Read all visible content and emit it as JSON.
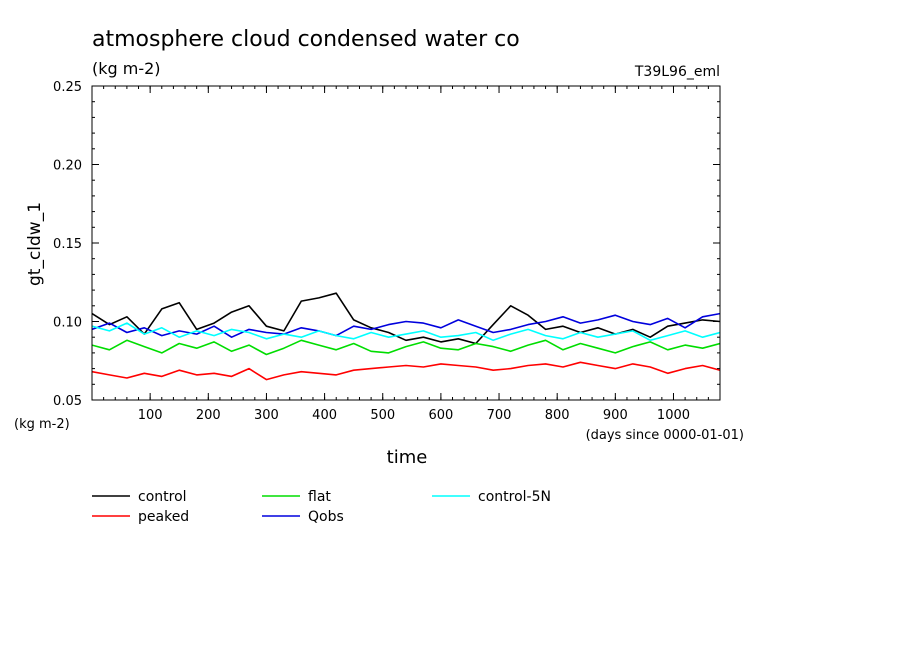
{
  "chart_data": {
    "type": "line",
    "title": "atmosphere cloud condensed water co",
    "subtitle": "(kg m-2)",
    "run_label": "T39L96_eml",
    "ylabel": "gt_cldw_1",
    "yunits": "(kg m-2)",
    "xlabel": "time",
    "xunits": "(days since 0000-01-01)",
    "xlim": [
      0,
      1080
    ],
    "ylim": [
      0.05,
      0.25
    ],
    "xticks": [
      100,
      200,
      300,
      400,
      500,
      600,
      700,
      800,
      900,
      1000
    ],
    "xtick_labels": [
      "100",
      "200",
      "300",
      "400",
      "500",
      "600",
      "700",
      "800",
      "900",
      "1000"
    ],
    "yticks": [
      0.05,
      0.1,
      0.15,
      0.2,
      0.25
    ],
    "ytick_labels": [
      "0.05",
      "0.10",
      "0.15",
      "0.20",
      "0.25"
    ],
    "grid": false,
    "legend_position": "bottom",
    "series": [
      {
        "name": "control",
        "color": "#000000",
        "x": [
          0,
          30,
          60,
          90,
          120,
          150,
          180,
          210,
          240,
          270,
          300,
          330,
          360,
          390,
          420,
          450,
          480,
          510,
          540,
          570,
          600,
          630,
          660,
          690,
          720,
          750,
          780,
          810,
          840,
          870,
          900,
          930,
          960,
          990,
          1020,
          1050,
          1080
        ],
        "y": [
          0.105,
          0.098,
          0.103,
          0.092,
          0.108,
          0.112,
          0.095,
          0.099,
          0.106,
          0.11,
          0.097,
          0.094,
          0.113,
          0.115,
          0.118,
          0.101,
          0.096,
          0.093,
          0.088,
          0.09,
          0.087,
          0.089,
          0.086,
          0.098,
          0.11,
          0.104,
          0.095,
          0.097,
          0.093,
          0.096,
          0.092,
          0.095,
          0.09,
          0.097,
          0.099,
          0.101,
          0.1
        ]
      },
      {
        "name": "peaked",
        "color": "#ff0000",
        "x": [
          0,
          30,
          60,
          90,
          120,
          150,
          180,
          210,
          240,
          270,
          300,
          330,
          360,
          390,
          420,
          450,
          480,
          510,
          540,
          570,
          600,
          630,
          660,
          690,
          720,
          750,
          780,
          810,
          840,
          870,
          900,
          930,
          960,
          990,
          1020,
          1050,
          1080
        ],
        "y": [
          0.068,
          0.066,
          0.064,
          0.067,
          0.065,
          0.069,
          0.066,
          0.067,
          0.065,
          0.07,
          0.063,
          0.066,
          0.068,
          0.067,
          0.066,
          0.069,
          0.07,
          0.071,
          0.072,
          0.071,
          0.073,
          0.072,
          0.071,
          0.069,
          0.07,
          0.072,
          0.073,
          0.071,
          0.074,
          0.072,
          0.07,
          0.073,
          0.071,
          0.067,
          0.07,
          0.072,
          0.069
        ]
      },
      {
        "name": "flat",
        "color": "#00dd00",
        "x": [
          0,
          30,
          60,
          90,
          120,
          150,
          180,
          210,
          240,
          270,
          300,
          330,
          360,
          390,
          420,
          450,
          480,
          510,
          540,
          570,
          600,
          630,
          660,
          690,
          720,
          750,
          780,
          810,
          840,
          870,
          900,
          930,
          960,
          990,
          1020,
          1050,
          1080
        ],
        "y": [
          0.085,
          0.082,
          0.088,
          0.084,
          0.08,
          0.086,
          0.083,
          0.087,
          0.081,
          0.085,
          0.079,
          0.083,
          0.088,
          0.085,
          0.082,
          0.086,
          0.081,
          0.08,
          0.084,
          0.087,
          0.083,
          0.082,
          0.086,
          0.084,
          0.081,
          0.085,
          0.088,
          0.082,
          0.086,
          0.083,
          0.08,
          0.084,
          0.087,
          0.082,
          0.085,
          0.083,
          0.086
        ]
      },
      {
        "name": "Qobs",
        "color": "#0000dd",
        "x": [
          0,
          30,
          60,
          90,
          120,
          150,
          180,
          210,
          240,
          270,
          300,
          330,
          360,
          390,
          420,
          450,
          480,
          510,
          540,
          570,
          600,
          630,
          660,
          690,
          720,
          750,
          780,
          810,
          840,
          870,
          900,
          930,
          960,
          990,
          1020,
          1050,
          1080
        ],
        "y": [
          0.095,
          0.099,
          0.093,
          0.096,
          0.091,
          0.094,
          0.092,
          0.097,
          0.09,
          0.095,
          0.093,
          0.092,
          0.096,
          0.094,
          0.091,
          0.097,
          0.095,
          0.098,
          0.1,
          0.099,
          0.096,
          0.101,
          0.097,
          0.093,
          0.095,
          0.098,
          0.1,
          0.103,
          0.099,
          0.101,
          0.104,
          0.1,
          0.098,
          0.102,
          0.096,
          0.103,
          0.105
        ]
      },
      {
        "name": "control-5N",
        "color": "#00ffff",
        "x": [
          0,
          30,
          60,
          90,
          120,
          150,
          180,
          210,
          240,
          270,
          300,
          330,
          360,
          390,
          420,
          450,
          480,
          510,
          540,
          570,
          600,
          630,
          660,
          690,
          720,
          750,
          780,
          810,
          840,
          870,
          900,
          930,
          960,
          990,
          1020,
          1050,
          1080
        ],
        "y": [
          0.097,
          0.094,
          0.099,
          0.092,
          0.096,
          0.09,
          0.094,
          0.091,
          0.095,
          0.093,
          0.089,
          0.092,
          0.09,
          0.094,
          0.091,
          0.089,
          0.093,
          0.09,
          0.092,
          0.094,
          0.09,
          0.091,
          0.093,
          0.088,
          0.092,
          0.095,
          0.091,
          0.089,
          0.093,
          0.09,
          0.092,
          0.094,
          0.088,
          0.091,
          0.094,
          0.09,
          0.093
        ]
      }
    ]
  }
}
